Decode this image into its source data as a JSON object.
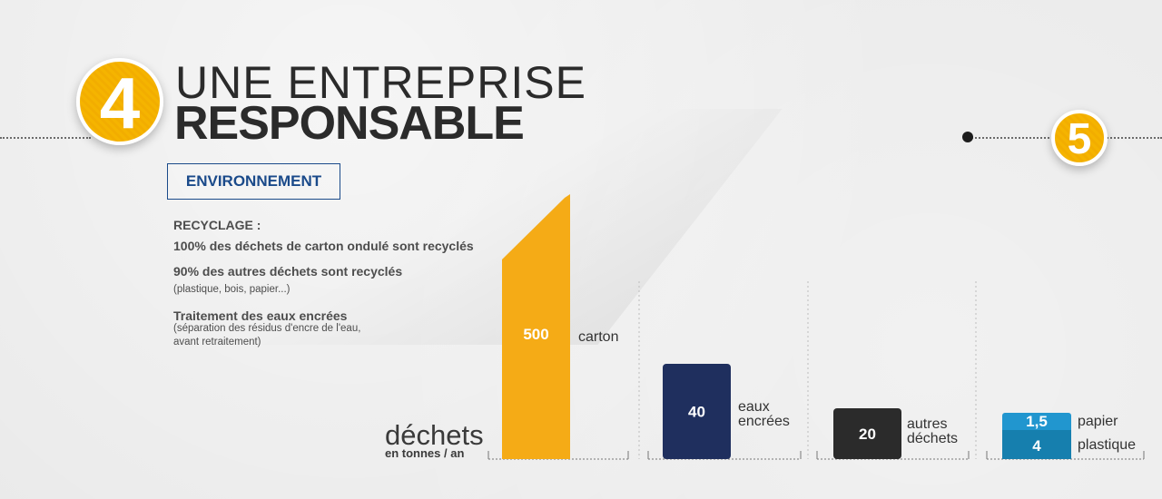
{
  "section_number": "4",
  "next_section_number": "5",
  "title": {
    "line1": "UNE ENTREPRISE",
    "line2": "RESPONSABLE"
  },
  "section_label": "ENVIRONNEMENT",
  "text": {
    "heading": "RECYCLAGE :",
    "line1": "100% des déchets de carton ondulé sont recyclés",
    "line2": "90% des autres déchets sont recyclés",
    "line2_sub": "(plastique, bois, papier...)",
    "line3": "Traitement des eaux encrées",
    "line3_sub1": "(séparation des résidus d'encre de l'eau,",
    "line3_sub2": "avant retraitement)"
  },
  "colors": {
    "accent": "#f5b400",
    "carton": "#f5ab16",
    "eaux": "#1f2f5e",
    "autres": "#2b2b2b",
    "papier": "#2196cf",
    "plastique": "#167fae",
    "title_blue": "#1a4a8a"
  },
  "chart_data": {
    "type": "bar",
    "title": "",
    "unit_label": "déchets",
    "unit_sublabel": "en tonnes / an",
    "categories": [
      {
        "labels": [
          "carton"
        ],
        "segments": [
          {
            "value": 500,
            "display": "500",
            "color": "#f5ab16"
          }
        ]
      },
      {
        "labels": [
          "eaux",
          "encrées"
        ],
        "segments": [
          {
            "value": 40,
            "display": "40",
            "color": "#1f2f5e"
          }
        ]
      },
      {
        "labels": [
          "autres",
          "déchets"
        ],
        "segments": [
          {
            "value": 20,
            "display": "20",
            "color": "#2b2b2b"
          }
        ]
      },
      {
        "labels": [
          "papier",
          "plastique"
        ],
        "segments": [
          {
            "value": 1.5,
            "display": "1,5",
            "color": "#2196cf"
          },
          {
            "value": 4,
            "display": "4",
            "color": "#167fae"
          }
        ]
      }
    ],
    "scale": "non-linear (visual)",
    "grid": false
  }
}
